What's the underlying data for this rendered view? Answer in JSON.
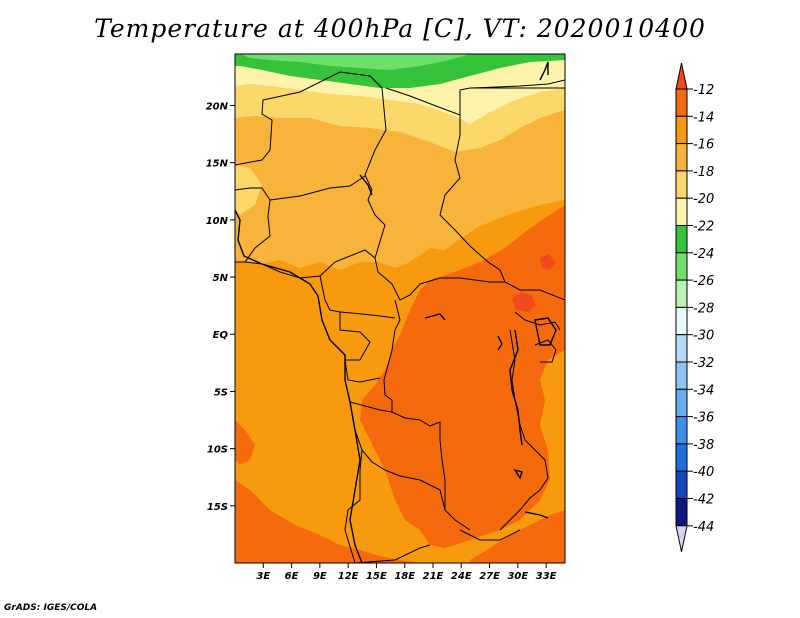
{
  "title": "Temperature at 400hPa [C], VT: 2020010400",
  "credit": "GrADS: IGES/COLA",
  "map": {
    "lon_range": [
      0,
      35
    ],
    "lat_range": [
      -20,
      24.5
    ],
    "lon_ticks": [
      {
        "value": 3,
        "label": "3E"
      },
      {
        "value": 6,
        "label": "6E"
      },
      {
        "value": 9,
        "label": "9E"
      },
      {
        "value": 12,
        "label": "12E"
      },
      {
        "value": 15,
        "label": "15E"
      },
      {
        "value": 18,
        "label": "18E"
      },
      {
        "value": 21,
        "label": "21E"
      },
      {
        "value": 24,
        "label": "24E"
      },
      {
        "value": 27,
        "label": "27E"
      },
      {
        "value": 30,
        "label": "30E"
      },
      {
        "value": 33,
        "label": "33E"
      }
    ],
    "lat_ticks": [
      {
        "value": 20,
        "label": "20N"
      },
      {
        "value": 15,
        "label": "15N"
      },
      {
        "value": 10,
        "label": "10N"
      },
      {
        "value": 5,
        "label": "5N"
      },
      {
        "value": 0,
        "label": "EQ"
      },
      {
        "value": -5,
        "label": "5S"
      },
      {
        "value": -10,
        "label": "10S"
      },
      {
        "value": -15,
        "label": "15S"
      }
    ]
  },
  "colorbar": {
    "levels": [
      -12,
      -14,
      -16,
      -18,
      -20,
      -22,
      -24,
      -26,
      -28,
      -30,
      -32,
      -34,
      -36,
      -38,
      -40,
      -42,
      -44
    ],
    "colors": [
      "#f04a1c",
      "#f66a0e",
      "#f79a0e",
      "#f8b43a",
      "#fcd76a",
      "#fef3aa",
      "#34c33a",
      "#6fde6a",
      "#b7f2b0",
      "#e8fbf8",
      "#b4dcf8",
      "#8ec4f4",
      "#66acef",
      "#3c90ea",
      "#1e6ee0",
      "#1446c0",
      "#0d1a80",
      "#d4d4f4"
    ]
  },
  "colors": {
    "c_m12": "#f04a1c",
    "c_m14": "#f66a0e",
    "c_m16": "#f79a0e",
    "c_m18": "#f8b43a",
    "c_m20": "#fcd76a",
    "c_m22": "#fef3aa",
    "c_m24": "#34c33a",
    "c_m26": "#6fde6a"
  }
}
